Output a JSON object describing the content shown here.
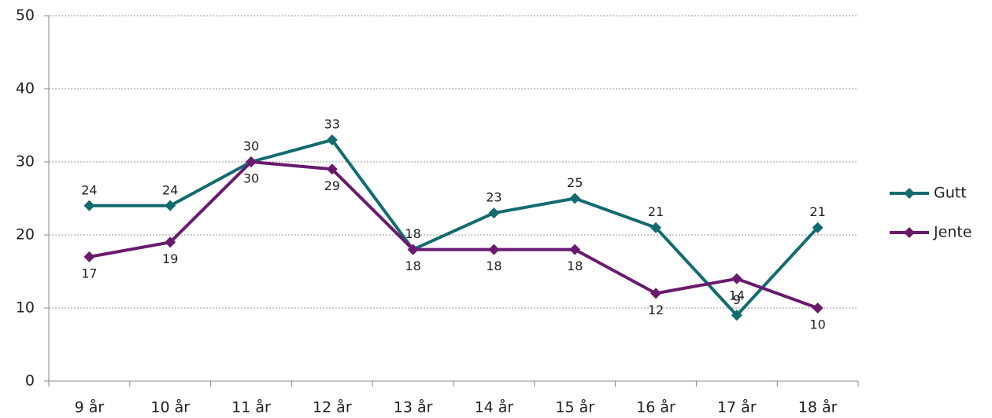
{
  "chart_data": {
    "type": "line",
    "categories": [
      "9 år",
      "10 år",
      "11 år",
      "12 år",
      "13 år",
      "14 år",
      "15 år",
      "16 år",
      "17 år",
      "18 år"
    ],
    "series": [
      {
        "name": "Gutt",
        "color": "#136b70",
        "values": [
          24,
          24,
          30,
          33,
          18,
          23,
          25,
          21,
          9,
          21
        ]
      },
      {
        "name": "Jente",
        "color": "#6a1a6e",
        "values": [
          17,
          19,
          30,
          29,
          18,
          18,
          18,
          12,
          14,
          10
        ]
      }
    ],
    "ylim": [
      0,
      50
    ],
    "yticks": [
      0,
      10,
      20,
      30,
      40,
      50
    ],
    "grid": true,
    "legend": "right"
  }
}
